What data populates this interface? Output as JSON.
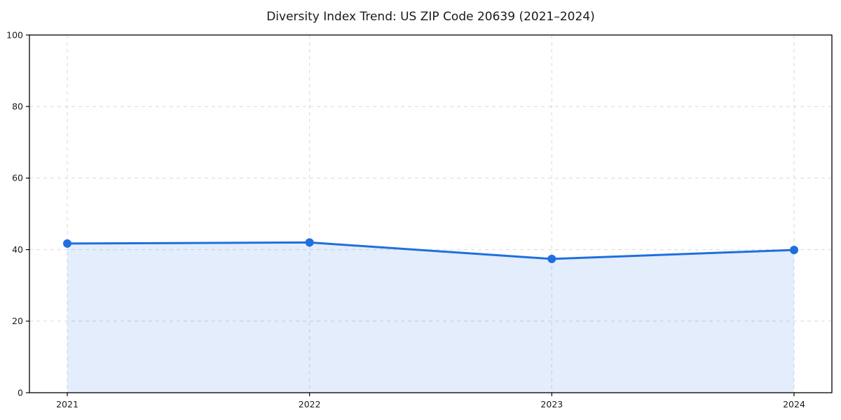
{
  "chart_data": {
    "type": "area",
    "title": "Diversity Index Trend: US ZIP Code 20639 (2021–2024)",
    "series_name": "Diversity Index",
    "categories": [
      "2021",
      "2022",
      "2023",
      "2024"
    ],
    "values": [
      41.7,
      42.0,
      37.4,
      39.9
    ],
    "xlabel": "",
    "ylabel": "",
    "ylim": [
      0,
      100
    ],
    "yticks": [
      0,
      20,
      40,
      60,
      80,
      100
    ],
    "grid": "dashed-both-axes",
    "legend_position": "none",
    "colors": {
      "line": "#1f6fe0",
      "marker": "#1f6fe0",
      "area_fill": "rgba(31, 111, 224, 0.12)",
      "grid": "#d9d9d9",
      "axis_frame": "#000000",
      "text": "#1a1a1a",
      "background": "#ffffff"
    }
  }
}
